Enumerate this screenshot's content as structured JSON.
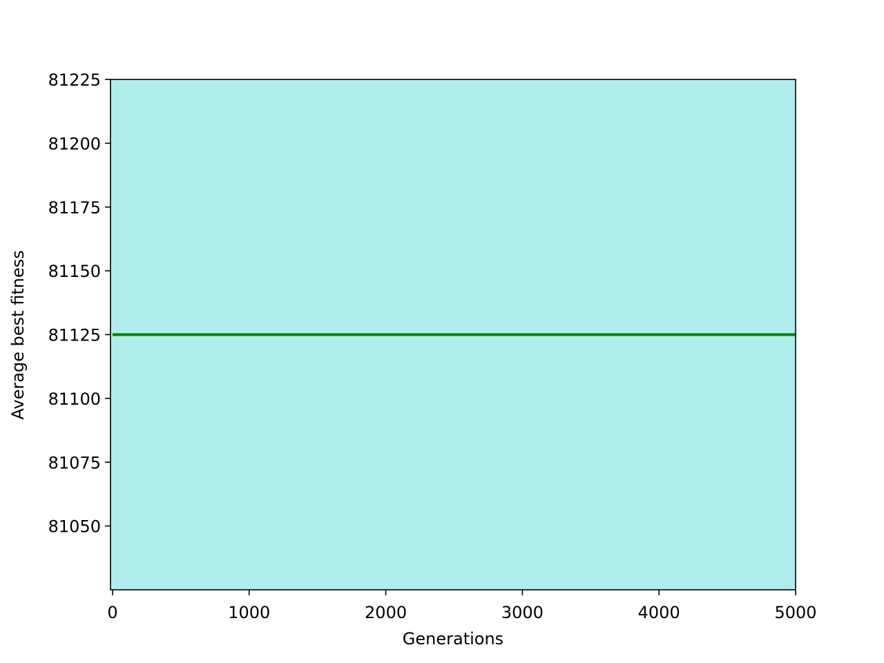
{
  "chart_data": {
    "type": "line",
    "title": "",
    "xlabel": "Generations",
    "ylabel": "Average best fitness",
    "xlim": [
      -15,
      5000
    ],
    "ylim": [
      81025,
      81225
    ],
    "x_ticks": [
      0,
      1000,
      2000,
      3000,
      4000,
      5000
    ],
    "y_ticks": [
      81050,
      81075,
      81100,
      81125,
      81150,
      81175,
      81200,
      81225
    ],
    "grid": false,
    "legend": "none",
    "background_color": "#b0eded",
    "series": [
      {
        "color": "#008000",
        "x": [
          0,
          5000
        ],
        "y": [
          81125,
          81125
        ]
      }
    ]
  }
}
